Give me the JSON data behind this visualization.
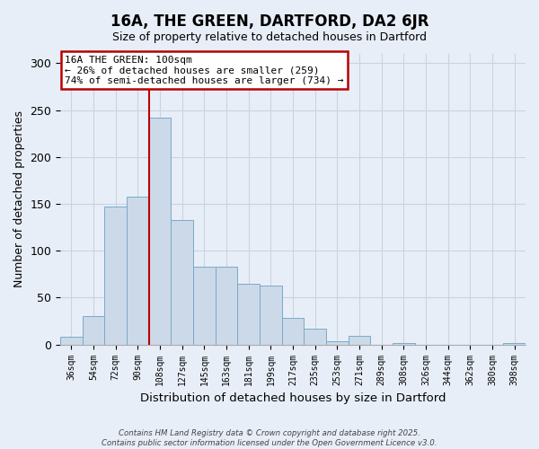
{
  "title": "16A, THE GREEN, DARTFORD, DA2 6JR",
  "subtitle": "Size of property relative to detached houses in Dartford",
  "xlabel": "Distribution of detached houses by size in Dartford",
  "ylabel": "Number of detached properties",
  "bin_labels": [
    "36sqm",
    "54sqm",
    "72sqm",
    "90sqm",
    "108sqm",
    "127sqm",
    "145sqm",
    "163sqm",
    "181sqm",
    "199sqm",
    "217sqm",
    "235sqm",
    "253sqm",
    "271sqm",
    "289sqm",
    "308sqm",
    "326sqm",
    "344sqm",
    "362sqm",
    "380sqm",
    "398sqm"
  ],
  "bar_values": [
    8,
    30,
    147,
    158,
    242,
    133,
    83,
    83,
    65,
    63,
    28,
    17,
    4,
    9,
    0,
    2,
    0,
    0,
    0,
    0,
    2
  ],
  "bar_color": "#ccd9e8",
  "bar_edge_color": "#7aaac8",
  "vline_x_index": 3.5,
  "vline_color": "#bb0000",
  "annotation_title": "16A THE GREEN: 100sqm",
  "annotation_line1": "← 26% of detached houses are smaller (259)",
  "annotation_line2": "74% of semi-detached houses are larger (734) →",
  "annotation_box_color": "#bb0000",
  "ylim": [
    0,
    310
  ],
  "yticks": [
    0,
    50,
    100,
    150,
    200,
    250,
    300
  ],
  "footer1": "Contains HM Land Registry data © Crown copyright and database right 2025.",
  "footer2": "Contains public sector information licensed under the Open Government Licence v3.0.",
  "background_color": "#e8eef8",
  "grid_color": "#c8d4e0"
}
